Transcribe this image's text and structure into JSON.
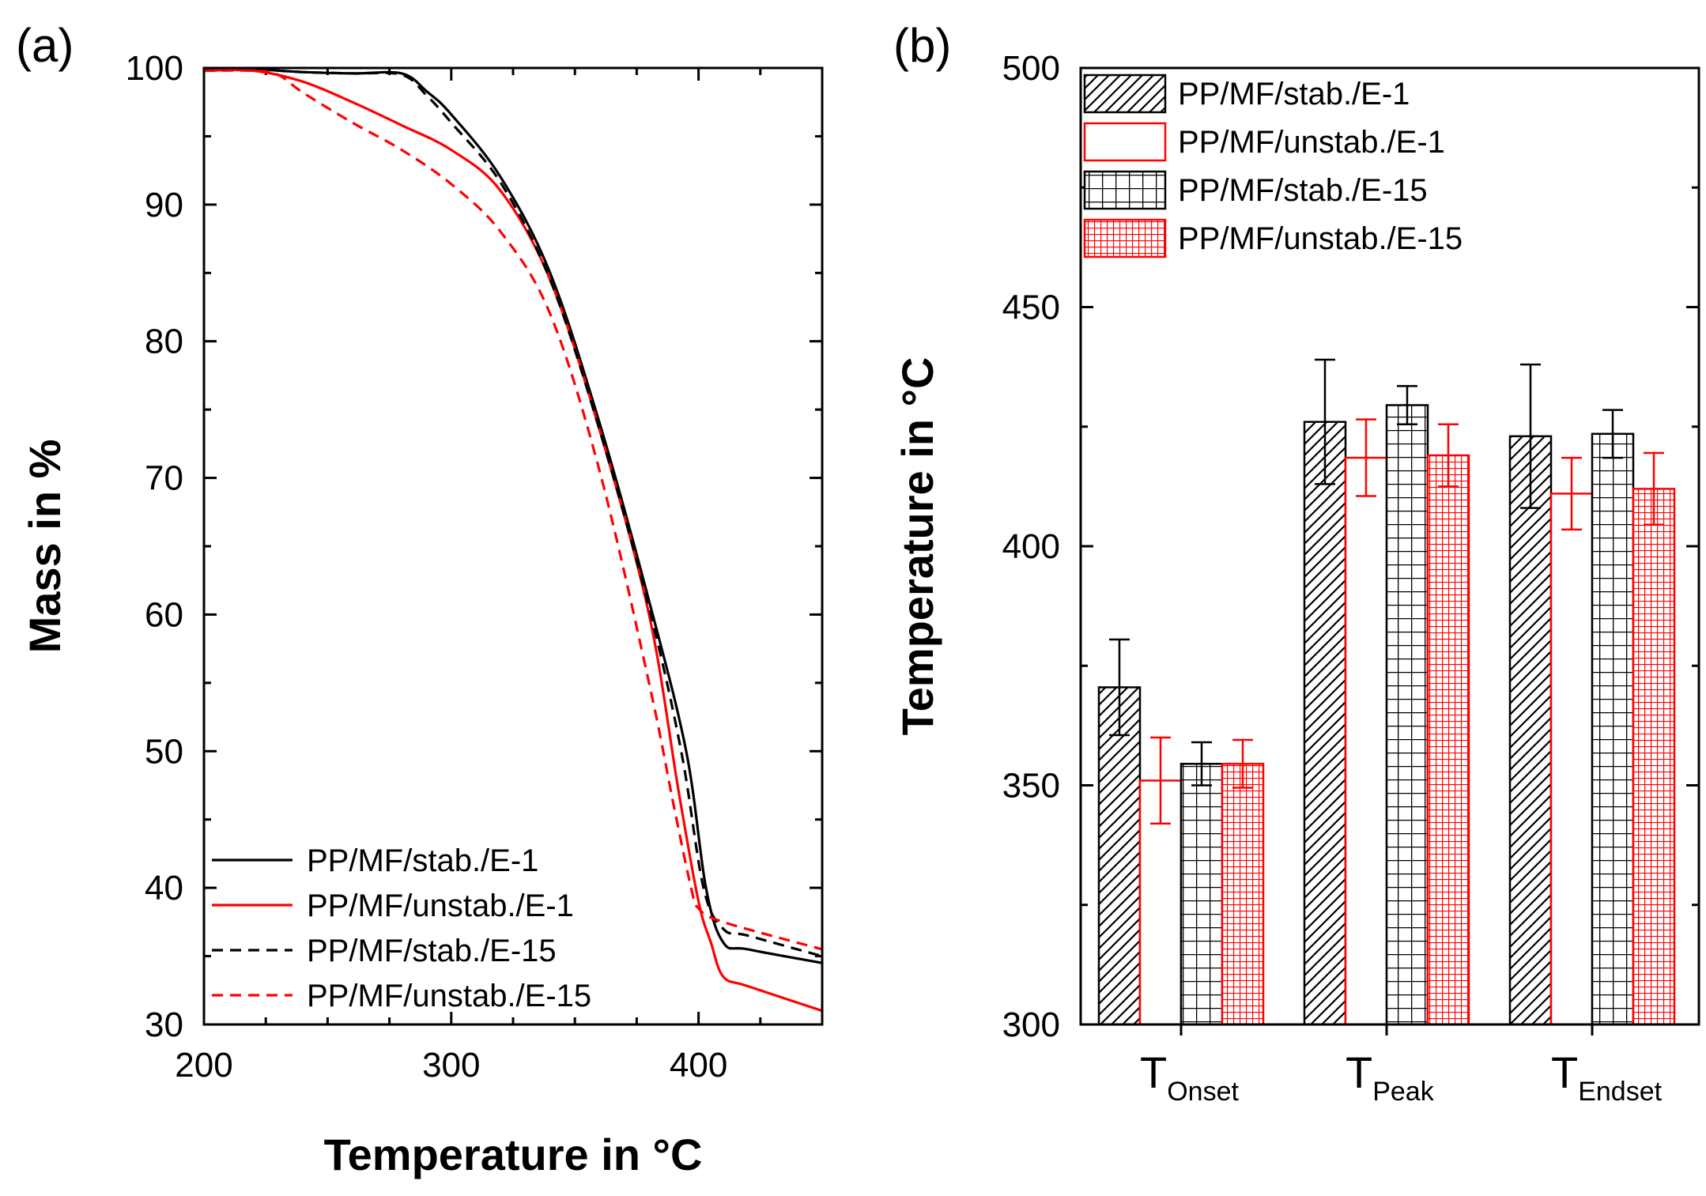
{
  "chart_data": [
    {
      "panel": "(a)",
      "type": "line",
      "xlabel": "Temperature in °C",
      "ylabel": "Mass in %",
      "xlim": [
        200,
        450
      ],
      "ylim": [
        30,
        100
      ],
      "xticks": [
        200,
        300,
        400
      ],
      "yticks": [
        30,
        40,
        50,
        60,
        70,
        80,
        90,
        100
      ],
      "legend_position": "bottom-left",
      "series": [
        {
          "name": "PP/MF/stab./E-1",
          "color": "#000000",
          "dash": "solid",
          "x": [
            200,
            220,
            240,
            260,
            280,
            290,
            300,
            320,
            340,
            360,
            380,
            395,
            403,
            410,
            420,
            450
          ],
          "y": [
            99.9,
            99.9,
            99.7,
            99.6,
            99.6,
            98.3,
            96.6,
            92.0,
            85.0,
            74.0,
            61.0,
            50.0,
            40.0,
            36.0,
            35.5,
            34.5
          ]
        },
        {
          "name": "PP/MF/unstab./E-1",
          "color": "#ff0000",
          "dash": "solid",
          "x": [
            200,
            220,
            240,
            260,
            280,
            300,
            320,
            340,
            360,
            380,
            392,
            400,
            405,
            410,
            420,
            450
          ],
          "y": [
            99.8,
            99.8,
            99.0,
            97.5,
            95.8,
            94.0,
            91.0,
            84.5,
            73.5,
            60.0,
            47.0,
            39.0,
            36.0,
            33.5,
            32.8,
            31.0
          ]
        },
        {
          "name": "PP/MF/stab./E-15",
          "color": "#000000",
          "dash": "dashed",
          "x": [
            200,
            220,
            240,
            260,
            280,
            290,
            300,
            320,
            340,
            360,
            380,
            393,
            402,
            410,
            420,
            450
          ],
          "y": [
            99.9,
            99.9,
            99.7,
            99.6,
            99.5,
            98.0,
            96.0,
            91.6,
            84.5,
            73.5,
            60.5,
            50.0,
            40.0,
            37.0,
            36.5,
            35.0
          ]
        },
        {
          "name": "PP/MF/unstab./E-15",
          "color": "#ff0000",
          "dash": "dashed",
          "x": [
            200,
            220,
            230,
            240,
            260,
            280,
            300,
            320,
            340,
            360,
            380,
            390,
            397,
            400,
            410,
            450
          ],
          "y": [
            99.8,
            99.8,
            99.5,
            98.2,
            96.0,
            94.0,
            91.5,
            88.0,
            82.0,
            70.5,
            55.0,
            46.0,
            40.0,
            38.5,
            37.5,
            35.5
          ]
        }
      ]
    },
    {
      "panel": "(b)",
      "type": "bar",
      "ylabel": "Temperature in °C",
      "ylim": [
        300,
        500
      ],
      "yticks": [
        300,
        350,
        400,
        450,
        500
      ],
      "legend_position": "top-left",
      "categories": [
        {
          "main": "T",
          "sub": "Onset"
        },
        {
          "main": "T",
          "sub": "Peak"
        },
        {
          "main": "T",
          "sub": "Endset"
        }
      ],
      "series": [
        {
          "name": "PP/MF/stab./E-1",
          "color": "#000000",
          "pattern": "hatch",
          "values": [
            370.5,
            426.0,
            423.0
          ],
          "errors": [
            10.0,
            13.0,
            15.0
          ]
        },
        {
          "name": "PP/MF/unstab./E-1",
          "color": "#ff0000",
          "pattern": "none",
          "values": [
            351.0,
            418.5,
            411.0
          ],
          "errors": [
            9.0,
            8.0,
            7.5
          ]
        },
        {
          "name": "PP/MF/stab./E-15",
          "color": "#000000",
          "pattern": "grid",
          "values": [
            354.5,
            429.5,
            423.5
          ],
          "errors": [
            4.5,
            4.0,
            5.0
          ]
        },
        {
          "name": "PP/MF/unstab./E-15",
          "color": "#ff0000",
          "pattern": "fine-grid",
          "values": [
            354.5,
            419.0,
            412.0
          ],
          "errors": [
            5.0,
            6.5,
            7.5
          ]
        }
      ]
    }
  ]
}
